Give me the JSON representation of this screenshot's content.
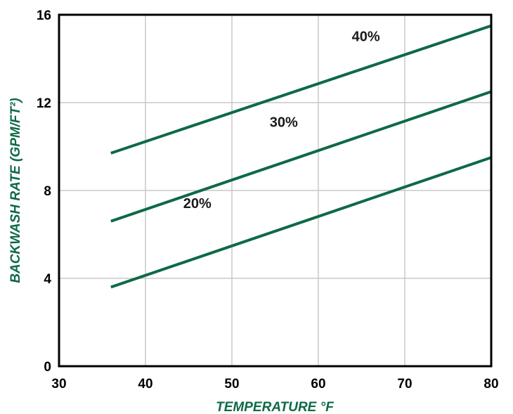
{
  "chart_data": {
    "type": "line",
    "title": "",
    "xlabel": "TEMPERATURE °F",
    "ylabel": "BACKWASH RATE (GPM/FT²)",
    "xlim": [
      30,
      80
    ],
    "ylim": [
      0,
      16
    ],
    "xticks": [
      "30",
      "40",
      "50",
      "60",
      "70",
      "80"
    ],
    "yticks": [
      "0",
      "4",
      "8",
      "12",
      "16"
    ],
    "grid": true,
    "series": [
      {
        "name": "20%",
        "x": [
          36,
          80
        ],
        "y": [
          3.6,
          9.5
        ]
      },
      {
        "name": "30%",
        "x": [
          36,
          80
        ],
        "y": [
          6.6,
          12.5
        ]
      },
      {
        "name": "40%",
        "x": [
          36,
          80
        ],
        "y": [
          9.7,
          15.5
        ]
      }
    ],
    "colors": {
      "line": "#0d6a45",
      "axis_title": "#0d6a45",
      "grid": "#c8c8c8"
    }
  }
}
